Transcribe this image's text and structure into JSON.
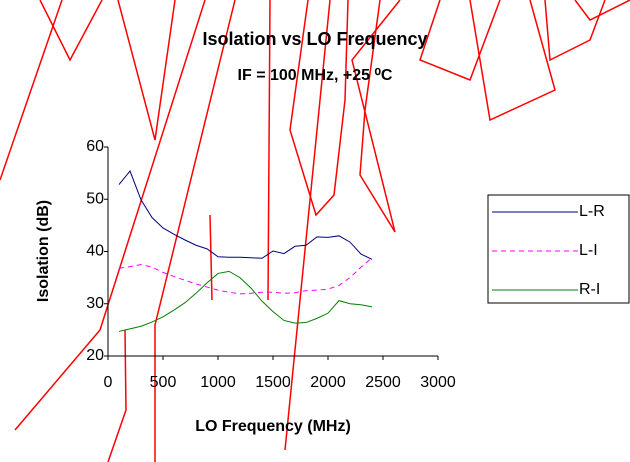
{
  "chart_data": {
    "type": "line",
    "title": "Isolation vs LO Frequency",
    "subtitle": "IF = 100 MHz,  +25 ⁰C",
    "x_label": "LO Frequency (MHz)",
    "y_label": "Isolation (dB)",
    "x": [
      100,
      200,
      300,
      400,
      500,
      600,
      700,
      800,
      900,
      1000,
      1100,
      1200,
      1300,
      1400,
      1500,
      1600,
      1700,
      1800,
      1900,
      2000,
      2100,
      2200,
      2300,
      2400
    ],
    "series": [
      {
        "name": "L-R",
        "color": "#000080",
        "dash": false,
        "values": [
          52.8,
          55.4,
          49.9,
          46.5,
          44.5,
          43.3,
          42.2,
          41.2,
          40.5,
          39.0,
          38.9,
          38.9,
          38.8,
          38.7,
          40.1,
          39.6,
          41.0,
          41.2,
          42.8,
          42.7,
          43.0,
          41.8,
          39.5,
          38.5
        ]
      },
      {
        "name": "L-I",
        "color": "#ff00ff",
        "dash": true,
        "values": [
          36.8,
          37.1,
          37.5,
          37.0,
          36.0,
          35.2,
          34.5,
          33.8,
          33.2,
          32.6,
          32.2,
          31.9,
          32.0,
          32.2,
          32.2,
          32.0,
          32.1,
          32.5,
          32.6,
          32.8,
          33.5,
          35.0,
          37.0,
          38.8
        ]
      },
      {
        "name": "R-I",
        "color": "#008000",
        "dash": false,
        "values": [
          24.7,
          25.2,
          25.7,
          26.5,
          27.5,
          28.8,
          30.2,
          32.0,
          34.0,
          35.8,
          36.2,
          35.0,
          33.0,
          30.5,
          28.5,
          26.8,
          26.3,
          26.4,
          27.2,
          28.2,
          30.6,
          30.0,
          29.8,
          29.4
        ]
      }
    ],
    "xlim": [
      0,
      3000
    ],
    "xticks": [
      0,
      500,
      1000,
      1500,
      2000,
      2500,
      3000
    ],
    "ylim": [
      20,
      60
    ],
    "yticks": [
      20,
      30,
      40,
      50,
      60
    ],
    "grid": false,
    "legend": "right"
  }
}
